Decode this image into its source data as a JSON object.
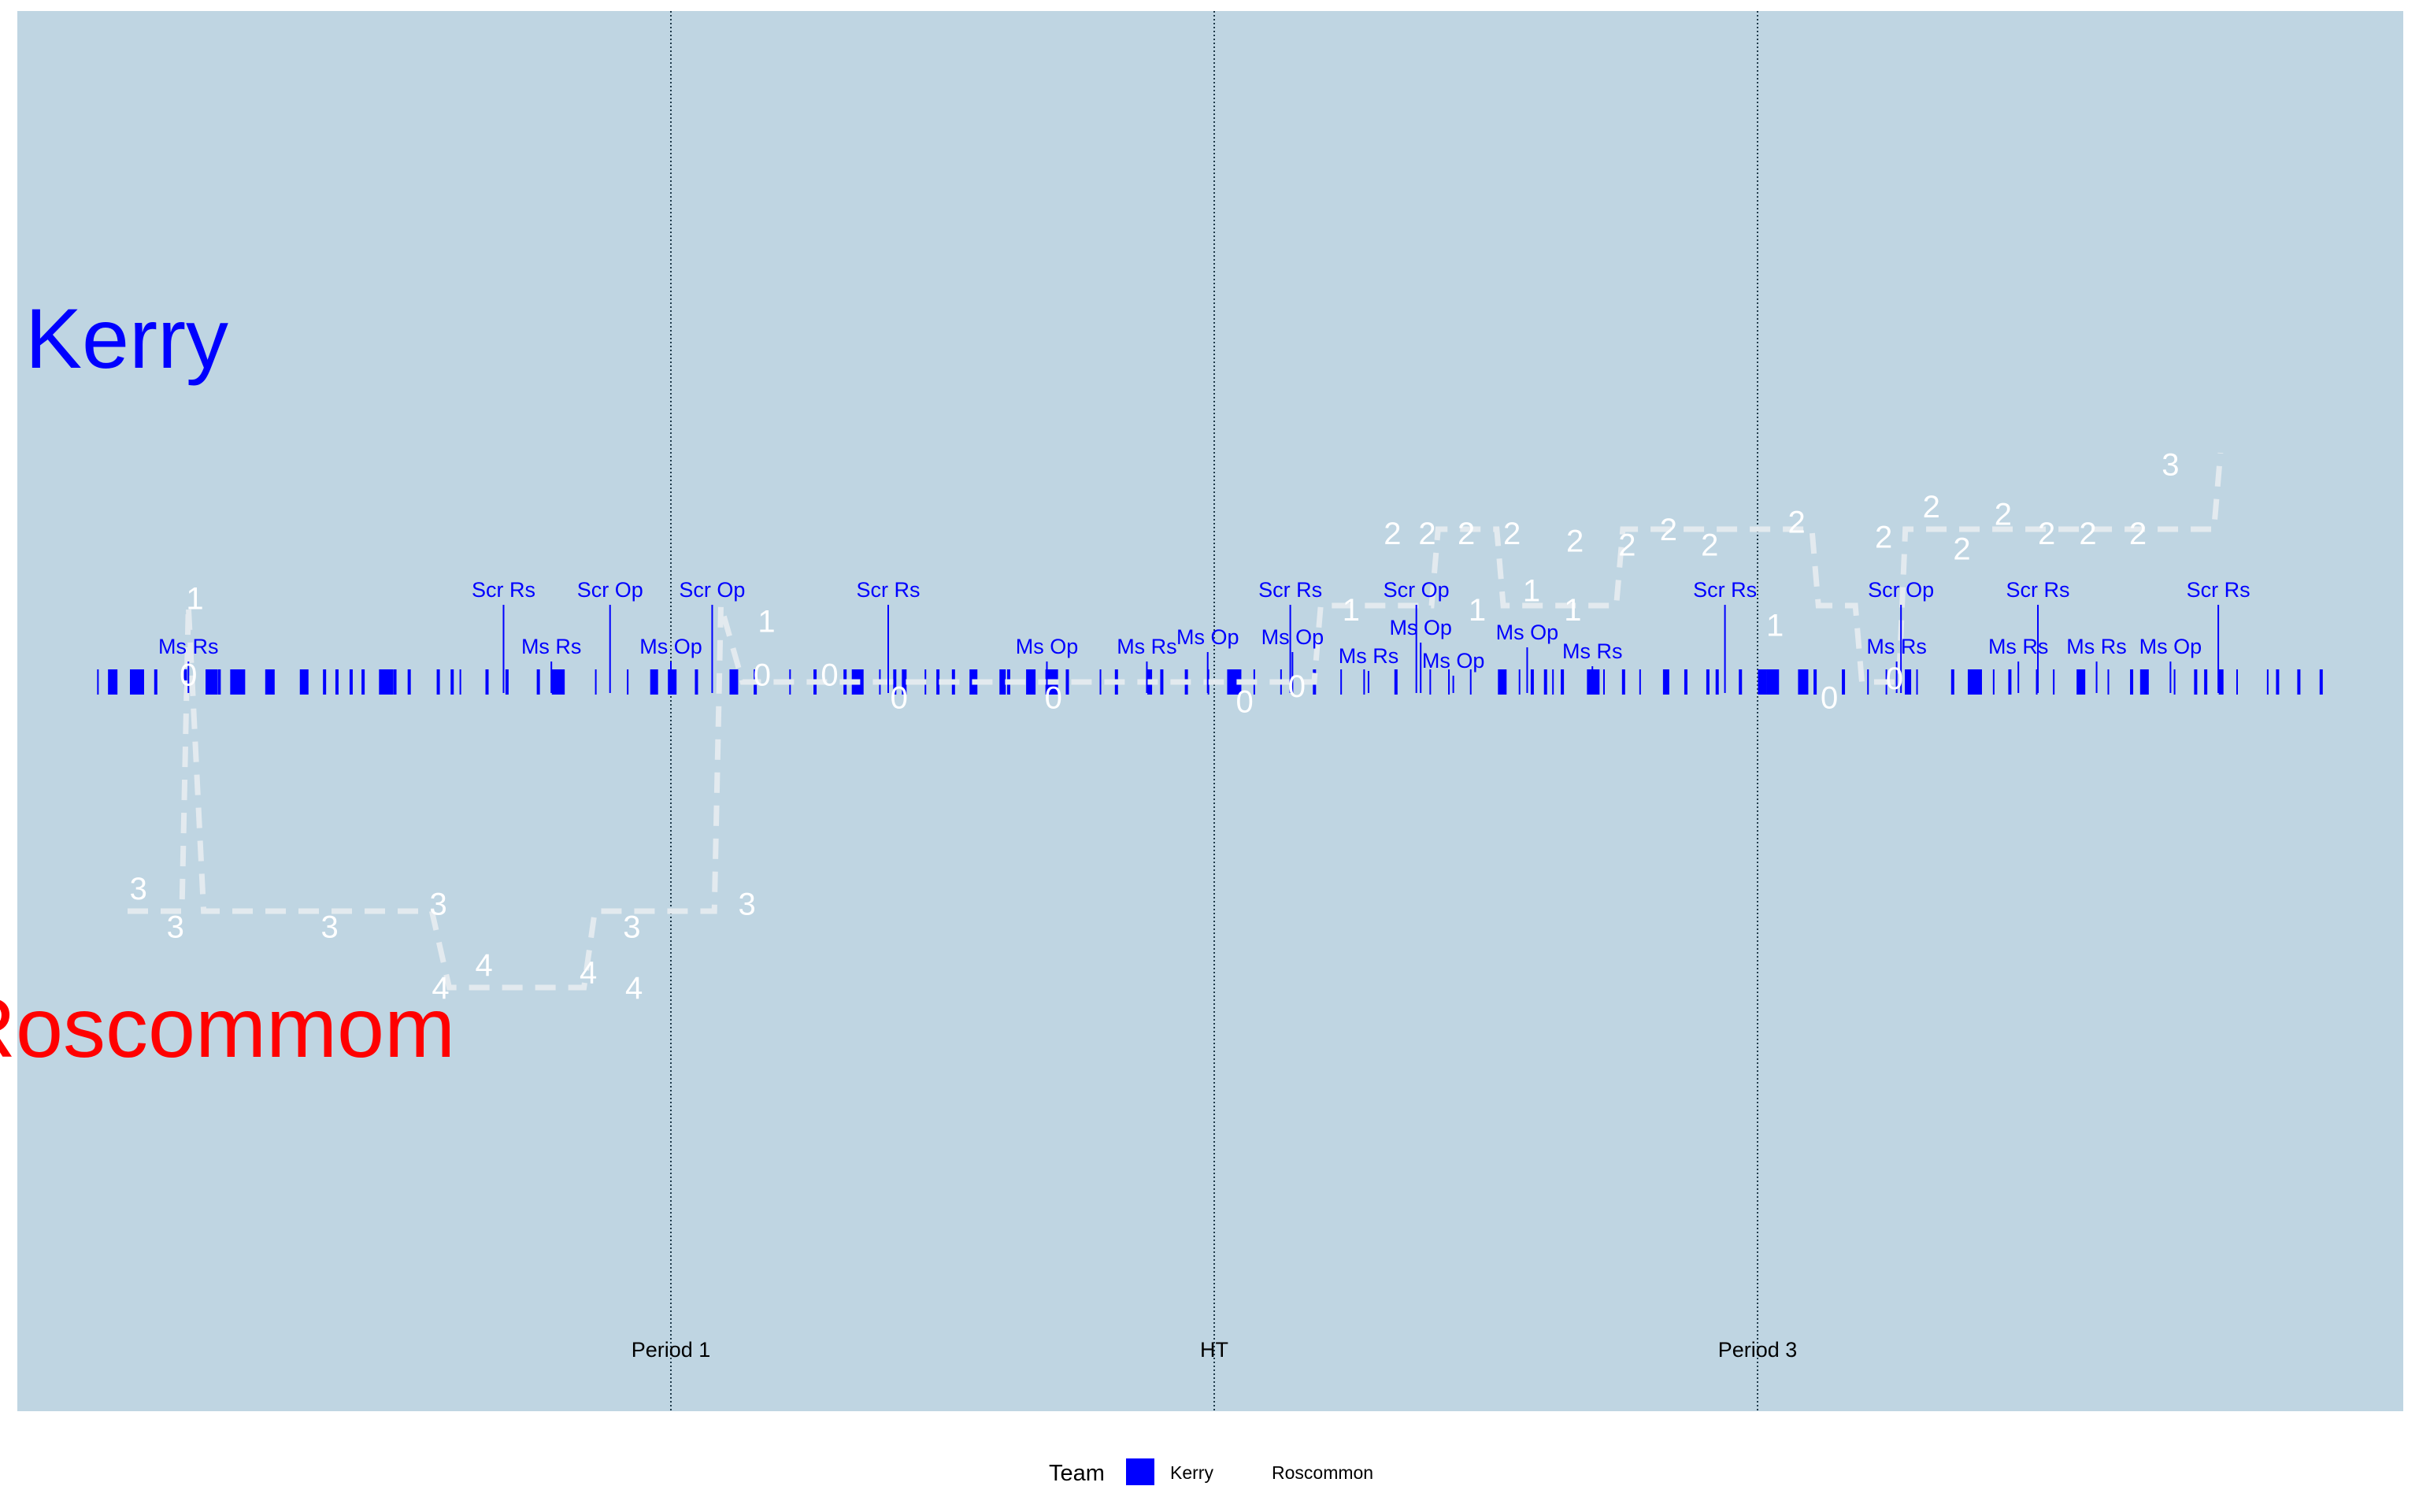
{
  "colors": {
    "panel_bg": "#bfd5e2",
    "page_bg": "#ffffff",
    "kerry": "#0000ff",
    "roscommon": "#ff0000",
    "score_line": "#e3eaef",
    "score_text": "#ffffff",
    "period_line": "#1f3a4a"
  },
  "chart_data": {
    "type": "timeline",
    "title": "",
    "team_labels": {
      "top": "Kerry",
      "bottom": "Roscommom"
    },
    "xlim": [
      0,
      100
    ],
    "periods": [
      {
        "label": "Period 1",
        "x": 25
      },
      {
        "label": "HT",
        "x": 50
      },
      {
        "label": "Period 3",
        "x": 75
      }
    ],
    "events": [
      {
        "label": "Ms Rs",
        "x": 2.8,
        "tier": 1
      },
      {
        "label": "Scr Rs",
        "x": 17.3,
        "tier": 2
      },
      {
        "label": "Ms Rs",
        "x": 19.5,
        "tier": 1
      },
      {
        "label": "Scr Op",
        "x": 22.2,
        "tier": 2
      },
      {
        "label": "Ms Op",
        "x": 25.0,
        "tier": 1
      },
      {
        "label": "Scr Op",
        "x": 26.9,
        "tier": 2
      },
      {
        "label": "Scr Rs",
        "x": 35.0,
        "tier": 2
      },
      {
        "label": "Ms Op",
        "x": 42.3,
        "tier": 1
      },
      {
        "label": "Ms Rs",
        "x": 46.9,
        "tier": 1
      },
      {
        "label": "Ms Op",
        "x": 49.7,
        "tier": 1.2
      },
      {
        "label": "Scr Rs",
        "x": 53.5,
        "tier": 2
      },
      {
        "label": "Ms Op",
        "x": 53.6,
        "tier": 1.2
      },
      {
        "label": "Ms Rs",
        "x": 57.1,
        "tier": 0.8
      },
      {
        "label": "Scr Op",
        "x": 59.3,
        "tier": 2
      },
      {
        "label": "Ms Op",
        "x": 59.5,
        "tier": 1.4
      },
      {
        "label": "Ms Op",
        "x": 61.0,
        "tier": 0.7
      },
      {
        "label": "Ms Op",
        "x": 64.4,
        "tier": 1.3
      },
      {
        "label": "Ms Rs",
        "x": 67.4,
        "tier": 0.9
      },
      {
        "label": "Scr Rs",
        "x": 73.5,
        "tier": 2
      },
      {
        "label": "Ms Rs",
        "x": 81.4,
        "tier": 1
      },
      {
        "label": "Scr Op",
        "x": 81.6,
        "tier": 2
      },
      {
        "label": "Ms Rs",
        "x": 87.0,
        "tier": 1
      },
      {
        "label": "Scr Rs",
        "x": 87.9,
        "tier": 2
      },
      {
        "label": "Ms Rs",
        "x": 90.6,
        "tier": 1
      },
      {
        "label": "Ms Op",
        "x": 94.0,
        "tier": 1
      },
      {
        "label": "Scr Rs",
        "x": 96.2,
        "tier": 2
      }
    ],
    "score_margin": [
      {
        "x": 0,
        "y": -3
      },
      {
        "x": 2.5,
        "y": -3
      },
      {
        "x": 2.8,
        "y": 1
      },
      {
        "x": 3.5,
        "y": -3
      },
      {
        "x": 14.0,
        "y": -3
      },
      {
        "x": 14.8,
        "y": -4
      },
      {
        "x": 21.0,
        "y": -4
      },
      {
        "x": 21.5,
        "y": -3
      },
      {
        "x": 27.0,
        "y": -3
      },
      {
        "x": 27.3,
        "y": 1
      },
      {
        "x": 28.3,
        "y": 0
      },
      {
        "x": 54.6,
        "y": 0
      },
      {
        "x": 54.9,
        "y": 1
      },
      {
        "x": 60.0,
        "y": 1
      },
      {
        "x": 60.3,
        "y": 2
      },
      {
        "x": 63.0,
        "y": 2
      },
      {
        "x": 63.3,
        "y": 1
      },
      {
        "x": 68.5,
        "y": 1
      },
      {
        "x": 68.8,
        "y": 2
      },
      {
        "x": 77.5,
        "y": 2
      },
      {
        "x": 77.8,
        "y": 1
      },
      {
        "x": 79.5,
        "y": 1
      },
      {
        "x": 79.8,
        "y": 0
      },
      {
        "x": 81.5,
        "y": 0
      },
      {
        "x": 81.8,
        "y": 2
      },
      {
        "x": 96.0,
        "y": 2
      },
      {
        "x": 96.3,
        "y": 3
      }
    ],
    "score_labels": [
      {
        "text": "3",
        "x": 0.5,
        "y": -2.7
      },
      {
        "text": "1",
        "x": 3.1,
        "y": 1.1
      },
      {
        "text": "0",
        "x": 2.8,
        "y": 0.1
      },
      {
        "text": "3",
        "x": 2.2,
        "y": -3.2
      },
      {
        "text": "3",
        "x": 9.3,
        "y": -3.2
      },
      {
        "text": "3",
        "x": 14.3,
        "y": -2.9
      },
      {
        "text": "4",
        "x": 14.4,
        "y": -4.0
      },
      {
        "text": "4",
        "x": 16.4,
        "y": -3.7
      },
      {
        "text": "4",
        "x": 21.2,
        "y": -3.8
      },
      {
        "text": "4",
        "x": 23.3,
        "y": -4.0
      },
      {
        "text": "3",
        "x": 23.2,
        "y": -3.2
      },
      {
        "text": "3",
        "x": 28.5,
        "y": -2.9
      },
      {
        "text": "1",
        "x": 29.4,
        "y": 0.8
      },
      {
        "text": "0",
        "x": 29.2,
        "y": 0.1
      },
      {
        "text": "0",
        "x": 32.3,
        "y": 0.1
      },
      {
        "text": "0",
        "x": 35.5,
        "y": -0.2
      },
      {
        "text": "0",
        "x": 42.6,
        "y": -0.2
      },
      {
        "text": "0",
        "x": 51.4,
        "y": -0.25
      },
      {
        "text": "0",
        "x": 53.8,
        "y": -0.05
      },
      {
        "text": "1",
        "x": 56.3,
        "y": 0.95
      },
      {
        "text": "2",
        "x": 58.2,
        "y": 1.95
      },
      {
        "text": "2",
        "x": 59.8,
        "y": 1.95
      },
      {
        "text": "2",
        "x": 61.6,
        "y": 1.95
      },
      {
        "text": "1",
        "x": 62.1,
        "y": 0.95
      },
      {
        "text": "2",
        "x": 63.7,
        "y": 1.95
      },
      {
        "text": "1",
        "x": 64.6,
        "y": 1.2
      },
      {
        "text": "1",
        "x": 66.5,
        "y": 0.95
      },
      {
        "text": "2",
        "x": 66.6,
        "y": 1.85
      },
      {
        "text": "2",
        "x": 69.0,
        "y": 1.8
      },
      {
        "text": "2",
        "x": 70.9,
        "y": 2.0
      },
      {
        "text": "2",
        "x": 72.8,
        "y": 1.8
      },
      {
        "text": "1",
        "x": 75.8,
        "y": 0.75
      },
      {
        "text": "2",
        "x": 76.8,
        "y": 2.1
      },
      {
        "text": "0",
        "x": 78.3,
        "y": -0.2
      },
      {
        "text": "0",
        "x": 81.3,
        "y": 0.05
      },
      {
        "text": "2",
        "x": 80.8,
        "y": 1.9
      },
      {
        "text": "2",
        "x": 83.0,
        "y": 2.3
      },
      {
        "text": "2",
        "x": 84.4,
        "y": 1.75
      },
      {
        "text": "2",
        "x": 86.3,
        "y": 2.2
      },
      {
        "text": "2",
        "x": 88.3,
        "y": 1.95
      },
      {
        "text": "2",
        "x": 90.2,
        "y": 1.95
      },
      {
        "text": "2",
        "x": 92.5,
        "y": 1.95
      },
      {
        "text": "3",
        "x": 94.0,
        "y": 2.85
      }
    ],
    "ylim": [
      -6,
      6
    ],
    "legend": {
      "title": "Team",
      "position": "bottom",
      "items": [
        {
          "label": "Kerry",
          "color": "#0000ff"
        },
        {
          "label": "Roscommon",
          "color": null
        }
      ]
    }
  }
}
